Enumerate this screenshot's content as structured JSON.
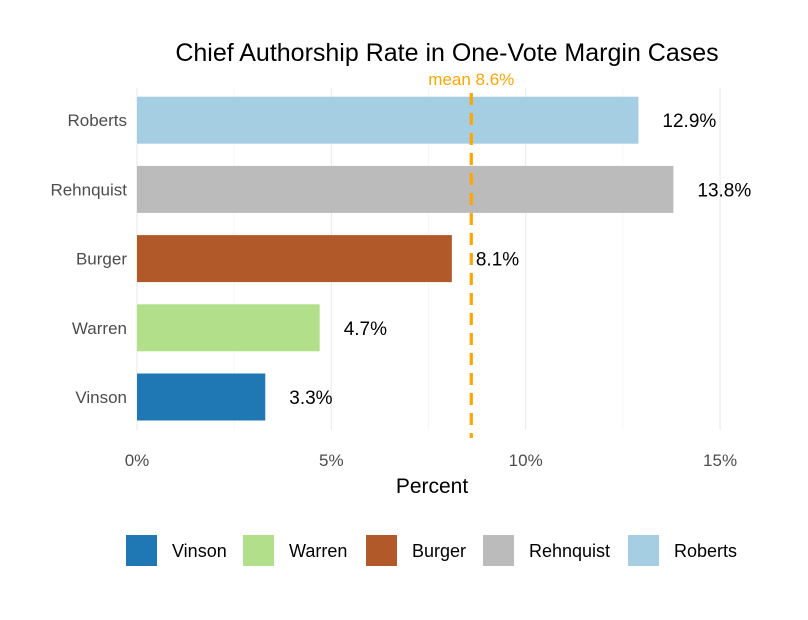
{
  "chart_data": {
    "type": "bar",
    "orientation": "horizontal",
    "title": "Chief Authorship Rate in One-Vote Margin Cases",
    "xlabel": "Percent",
    "ylabel": "",
    "categories": [
      "Vinson",
      "Warren",
      "Burger",
      "Rehnquist",
      "Roberts"
    ],
    "values": [
      3.3,
      4.7,
      8.1,
      13.8,
      12.9
    ],
    "data_labels": [
      "3.3%",
      "4.7%",
      "8.1%",
      "13.8%",
      "12.9%"
    ],
    "colors": [
      "#1f78b4",
      "#b2df8a",
      "#b15928",
      "#bbbbbb",
      "#a6cee3"
    ],
    "xlim": [
      0,
      15.3
    ],
    "xticks": [
      0,
      5,
      10,
      15
    ],
    "xtick_labels": [
      "0%",
      "5%",
      "10%",
      "15%"
    ],
    "mean": {
      "value": 8.6,
      "label": "mean 8.6%",
      "color": "#ffa500"
    },
    "grid": true,
    "legend": {
      "placement": "bottom",
      "entries": [
        "Vinson",
        "Warren",
        "Burger",
        "Rehnquist",
        "Roberts"
      ]
    }
  }
}
